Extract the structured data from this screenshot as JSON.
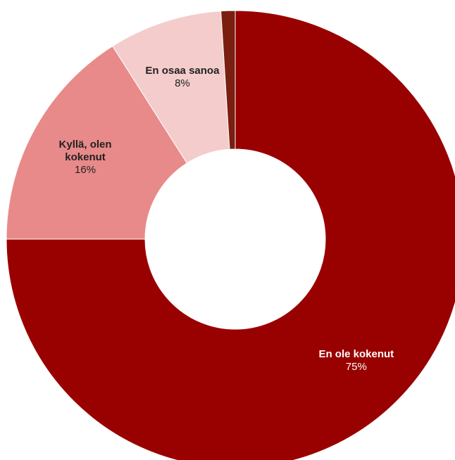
{
  "chart_data": {
    "type": "pie",
    "donut": true,
    "title": "",
    "legend": "none",
    "slices": [
      {
        "label": "En ole kokenut",
        "label_lines": [
          "En ole kokenut"
        ],
        "value": 75,
        "value_label": "75%",
        "color": "#990000",
        "text_color": "#ffffff"
      },
      {
        "label": "Kyllä, olen kokenut",
        "label_lines": [
          "Kyllä, olen",
          "kokenut"
        ],
        "value": 16,
        "value_label": "16%",
        "color": "#e88a89",
        "text_color": "#222222"
      },
      {
        "label": "En osaa sanoa",
        "label_lines": [
          "En osaa sanoa"
        ],
        "value": 8,
        "value_label": "8%",
        "color": "#f4cccc",
        "text_color": "#222222"
      },
      {
        "label": "",
        "label_lines": [],
        "value": 1,
        "value_label": "",
        "color": "#7a1f10",
        "text_color": "#222222"
      }
    ]
  }
}
